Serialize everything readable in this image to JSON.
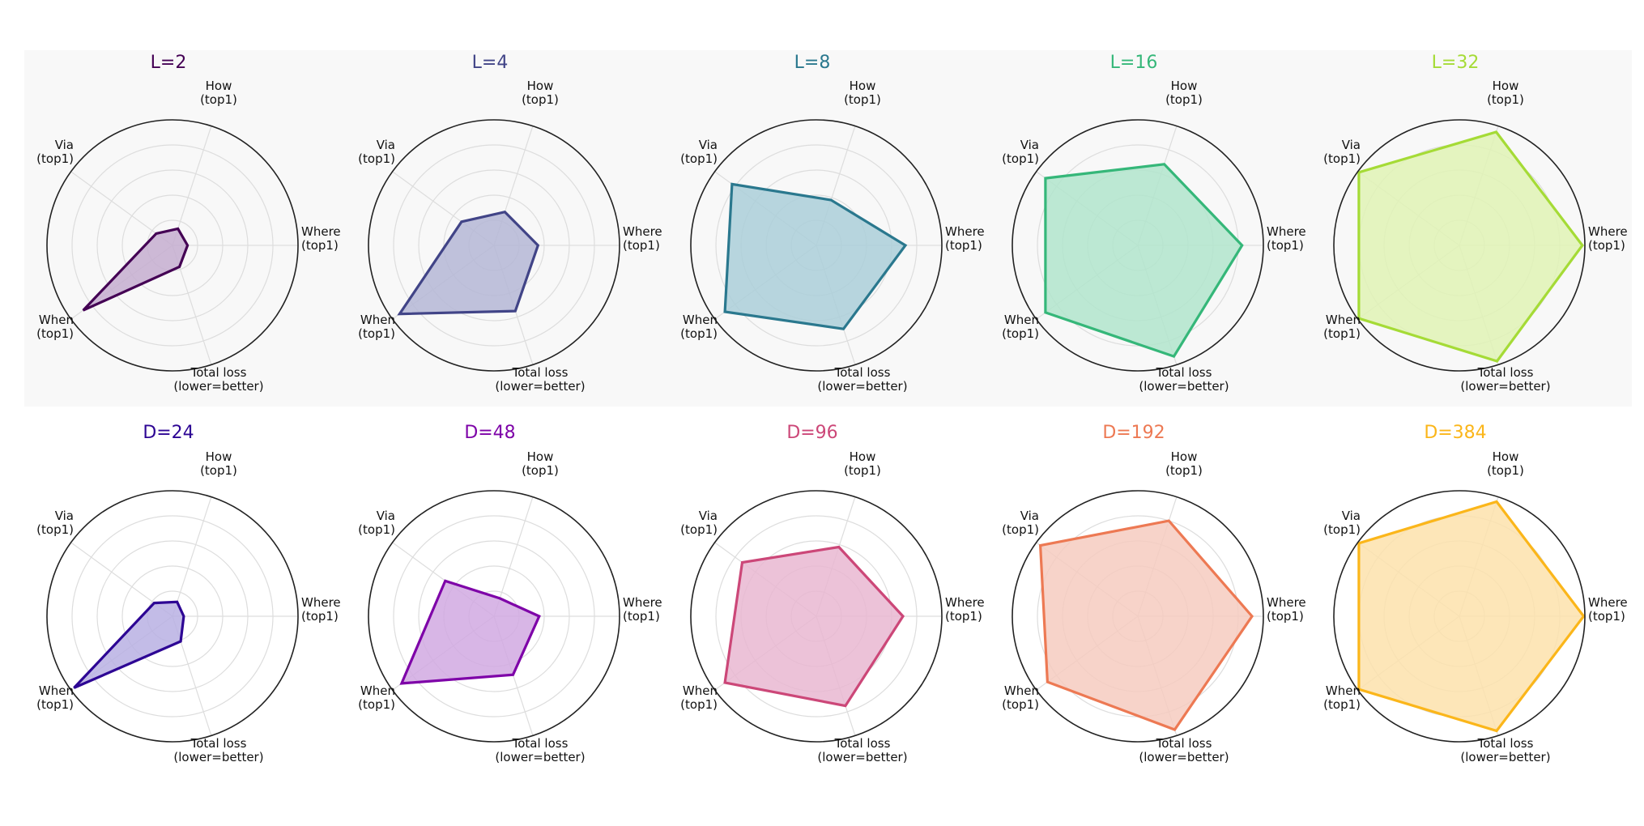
{
  "chart_data": [
    {
      "type": "radar",
      "title": "L=2",
      "color": "#440154",
      "fill": "#c5aed0",
      "rmax": 1.0,
      "axes": [
        "Where\n(top1)",
        "How\n(top1)",
        "Via\n(top1)",
        "When\n(top1)",
        "Total loss\n(lower=better)"
      ],
      "values": [
        0.12,
        0.14,
        0.16,
        0.88,
        0.18
      ]
    },
    {
      "type": "radar",
      "title": "L=4",
      "color": "#414487",
      "fill": "#b5b7d6",
      "rmax": 1.0,
      "axes": [
        "Where\n(top1)",
        "How\n(top1)",
        "Via\n(top1)",
        "When\n(top1)",
        "Total loss\n(lower=better)"
      ],
      "values": [
        0.35,
        0.28,
        0.32,
        0.93,
        0.55
      ]
    },
    {
      "type": "radar",
      "title": "L=8",
      "color": "#2a788e",
      "fill": "#abcfd9",
      "rmax": 1.0,
      "axes": [
        "Where\n(top1)",
        "How\n(top1)",
        "Via\n(top1)",
        "When\n(top1)",
        "Total loss\n(lower=better)"
      ],
      "values": [
        0.71,
        0.38,
        0.83,
        0.9,
        0.7
      ]
    },
    {
      "type": "radar",
      "title": "L=16",
      "color": "#35b779",
      "fill": "#b2e5cc",
      "rmax": 1.0,
      "axes": [
        "Where\n(top1)",
        "How\n(top1)",
        "Via\n(top1)",
        "When\n(top1)",
        "Total loss\n(lower=better)"
      ],
      "values": [
        0.83,
        0.68,
        0.91,
        0.91,
        0.93
      ]
    },
    {
      "type": "radar",
      "title": "L=32",
      "color": "#a5db36",
      "fill": "#e0f3b5",
      "rmax": 1.0,
      "axes": [
        "Where\n(top1)",
        "How\n(top1)",
        "Via\n(top1)",
        "When\n(top1)",
        "Total loss\n(lower=better)"
      ],
      "values": [
        0.98,
        0.95,
        0.99,
        0.99,
        0.97
      ]
    },
    {
      "type": "radar",
      "title": "D=24",
      "color": "#2d0594",
      "fill": "#b8b0e3",
      "rmax": 1.0,
      "axes": [
        "Where\n(top1)",
        "How\n(top1)",
        "Via\n(top1)",
        "When\n(top1)",
        "Total loss\n(lower=better)"
      ],
      "values": [
        0.09,
        0.12,
        0.18,
        0.97,
        0.21
      ]
    },
    {
      "type": "radar",
      "title": "D=48",
      "color": "#7e03a8",
      "fill": "#d1a9e2",
      "rmax": 1.0,
      "axes": [
        "Where\n(top1)",
        "How\n(top1)",
        "Via\n(top1)",
        "When\n(top1)",
        "Total loss\n(lower=better)"
      ],
      "values": [
        0.36,
        0.15,
        0.48,
        0.91,
        0.49
      ]
    },
    {
      "type": "radar",
      "title": "D=96",
      "color": "#cc4778",
      "fill": "#e9b7d1",
      "rmax": 1.0,
      "axes": [
        "Where\n(top1)",
        "How\n(top1)",
        "Via\n(top1)",
        "When\n(top1)",
        "Total loss\n(lower=better)"
      ],
      "values": [
        0.69,
        0.58,
        0.73,
        0.9,
        0.75
      ]
    },
    {
      "type": "radar",
      "title": "D=192",
      "color": "#ed7953",
      "fill": "#f6cbc0",
      "rmax": 1.0,
      "axes": [
        "Where\n(top1)",
        "How\n(top1)",
        "Via\n(top1)",
        "When\n(top1)",
        "Total loss\n(lower=better)"
      ],
      "values": [
        0.91,
        0.8,
        0.96,
        0.89,
        0.95
      ]
    },
    {
      "type": "radar",
      "title": "D=384",
      "color": "#fbb61a",
      "fill": "#fde2ab",
      "rmax": 1.0,
      "axes": [
        "Where\n(top1)",
        "How\n(top1)",
        "Via\n(top1)",
        "When\n(top1)",
        "Total loss\n(lower=better)"
      ],
      "values": [
        0.99,
        0.96,
        0.99,
        0.99,
        0.96
      ]
    }
  ]
}
